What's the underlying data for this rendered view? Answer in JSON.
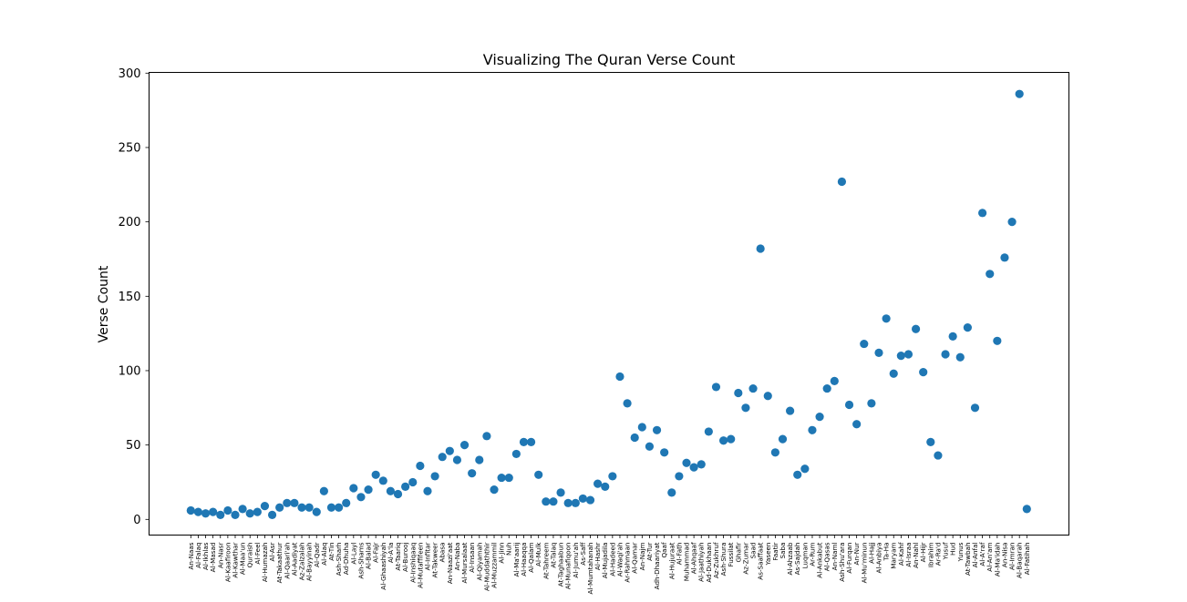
{
  "chart_data": {
    "type": "scatter",
    "title": "Visualizing The Quran Verse Count",
    "xlabel": "",
    "ylabel": "Verse Count",
    "ylim": [
      0,
      300
    ],
    "yticks": [
      0,
      50,
      100,
      150,
      200,
      250,
      300
    ],
    "marker_color": "#1f77b4",
    "grid": false,
    "legend": "none",
    "x": [
      "An-Naas",
      "Al-Falaq",
      "Al-Ikhlas",
      "Al-Masad",
      "An-Nasr",
      "Al-Kaafiroon",
      "Al-Kawthar",
      "Al-Maa'un",
      "Quraish",
      "Al-Feel",
      "Al-Humazah",
      "Al-Asr",
      "At-Takaathur",
      "Al-Qaari'ah",
      "Al-Aadiyat",
      "Az-Zalzalah",
      "Al-Bayyinah",
      "Al-Qadr",
      "Al-Alaq",
      "At-Tin",
      "Ash-Sharh",
      "Ad-Dhuha",
      "Al-Layl",
      "Ash-Shams",
      "Al-Balad",
      "Al-Fajr",
      "Al-Ghaashiyah",
      "Al-A'la",
      "At-Taariq",
      "Al-Burooj",
      "Al-Inshiqaaq",
      "Al-Mutaffifeen",
      "Al-Infitar",
      "At-Takweer",
      "Abasa",
      "An-Naazi'aat",
      "An-Naba",
      "Al-Mursalaat",
      "Al-Insaan",
      "Al-Qiyamah",
      "Al-Muddaththir",
      "Al-Muzzammil",
      "Al-Jinn",
      "Nuh",
      "Al-Ma'aarij",
      "Al-Haaqqa",
      "Al-Qalam",
      "Al-Mulk",
      "At-Tahreem",
      "At-Talaq",
      "At-Taghaabun",
      "Al-Munafiqoon",
      "Al-Jumu'ah",
      "As-Saff",
      "Al-Mumtahanah",
      "Al-Hashr",
      "Al-Mujadila",
      "Al-Hadeed",
      "Al-Waqi'ah",
      "Ar-Rahmaan",
      "Al-Qamar",
      "An-Najm",
      "At-Tur",
      "Adh-Dhaariyat",
      "Qaaf",
      "Al-Hujuraat",
      "Al-Fath",
      "Muhammad",
      "Al-Ahqaaf",
      "Al-Jaathiyah",
      "Ad-Dukhaan",
      "Az-Zukhruf",
      "Ash-Shura",
      "Fussilat",
      "Ghafir",
      "Az-Zumar",
      "Saad",
      "As-Saaffaat",
      "Yaseen",
      "Faatir",
      "Saba",
      "Al-Ahzaab",
      "As-Sajdah",
      "Luqman",
      "Ar-Rum",
      "Al-Ankabut",
      "Al-Qasas",
      "An-Naml",
      "Ash-Shu'ara",
      "Al-Furqan",
      "An-Nur",
      "Al-Mu'minun",
      "Al-Hajj",
      "Al-Anbiya",
      "Ta-Ha",
      "Maryam",
      "Al-Kahf",
      "Al-Israa",
      "An-Nahl",
      "Al-Hijr",
      "Ibrahim",
      "Ar-Ra'd",
      "Yusuf",
      "Hud",
      "Yunus",
      "At-Tawbah",
      "Al-Anfal",
      "Al-A'raf",
      "Al-An'am",
      "Al-Ma'idah",
      "An-Nisa",
      "Al-Imran",
      "Al-Baqarah",
      "Al-Fatihah"
    ],
    "y": [
      6,
      5,
      4,
      5,
      3,
      6,
      3,
      7,
      4,
      5,
      9,
      3,
      8,
      11,
      11,
      8,
      8,
      5,
      19,
      8,
      8,
      11,
      21,
      15,
      20,
      30,
      26,
      19,
      17,
      22,
      25,
      36,
      19,
      29,
      42,
      46,
      40,
      50,
      31,
      40,
      56,
      20,
      28,
      28,
      44,
      52,
      52,
      30,
      12,
      12,
      18,
      11,
      11,
      14,
      13,
      24,
      22,
      29,
      96,
      78,
      55,
      62,
      49,
      60,
      45,
      18,
      29,
      38,
      35,
      37,
      59,
      89,
      53,
      54,
      85,
      75,
      88,
      182,
      83,
      45,
      54,
      73,
      30,
      34,
      60,
      69,
      88,
      93,
      227,
      77,
      64,
      118,
      78,
      112,
      135,
      98,
      110,
      111,
      128,
      99,
      52,
      43,
      111,
      123,
      109,
      129,
      75,
      206,
      165,
      120,
      176,
      200,
      286,
      7
    ]
  }
}
